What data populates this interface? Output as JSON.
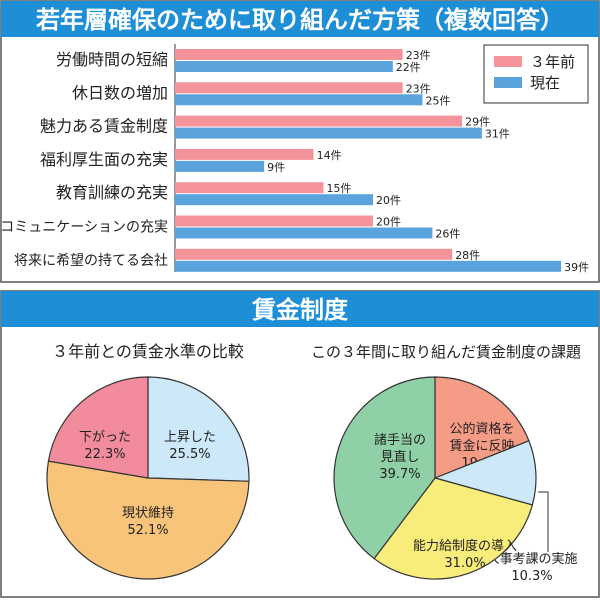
{
  "colors": {
    "title_bg": "#1e8fd6",
    "prev": "#f4949a",
    "now": "#5ba3dc"
  },
  "chart_data": [
    {
      "type": "bar",
      "title": "若年層確保のために取り組んだ方策（複数回答）",
      "orientation": "horizontal",
      "categories": [
        "労働時間の短縮",
        "休日数の増加",
        "魅力ある賃金制度",
        "福利厚生面の充実",
        "教育訓練の充実",
        "コミュニケーションの充実",
        "将来に希望の持てる会社"
      ],
      "unit": "件",
      "legend_position": "top-right",
      "series": [
        {
          "name": "３年前",
          "color": "#f4949a",
          "values": [
            23,
            23,
            29,
            14,
            15,
            20,
            28
          ]
        },
        {
          "name": "現在",
          "color": "#5ba3dc",
          "values": [
            22,
            25,
            31,
            9,
            20,
            26,
            39
          ]
        }
      ],
      "xlim": [
        0,
        40
      ]
    },
    {
      "type": "pie",
      "section_title": "賃金制度",
      "title": "３年前との賃金水準の比較",
      "slices": [
        {
          "label": "上昇した",
          "value": 25.5,
          "text": "25.5%",
          "color": "#cde8f8"
        },
        {
          "label": "現状維持",
          "value": 52.1,
          "text": "52.1%",
          "color": "#f8c47a"
        },
        {
          "label": "下がった",
          "value": 22.3,
          "text": "22.3%",
          "color": "#f28c9c"
        }
      ]
    },
    {
      "type": "pie",
      "title": "この３年間に取り組んだ賃金制度の課題",
      "slices": [
        {
          "label": "公的資格を\n賃金に反映",
          "value": 19.0,
          "text": "19.0%",
          "color": "#f59c86"
        },
        {
          "label": "人事考課の実施",
          "value": 10.3,
          "text": "10.3%",
          "color": "#cde8f8"
        },
        {
          "label": "能力給制度の導入",
          "value": 31.0,
          "text": "31.0%",
          "color": "#f8ec7a"
        },
        {
          "label": "諸手当の\n見直し",
          "value": 39.7,
          "text": "39.7%",
          "color": "#90d0a6"
        }
      ]
    }
  ]
}
